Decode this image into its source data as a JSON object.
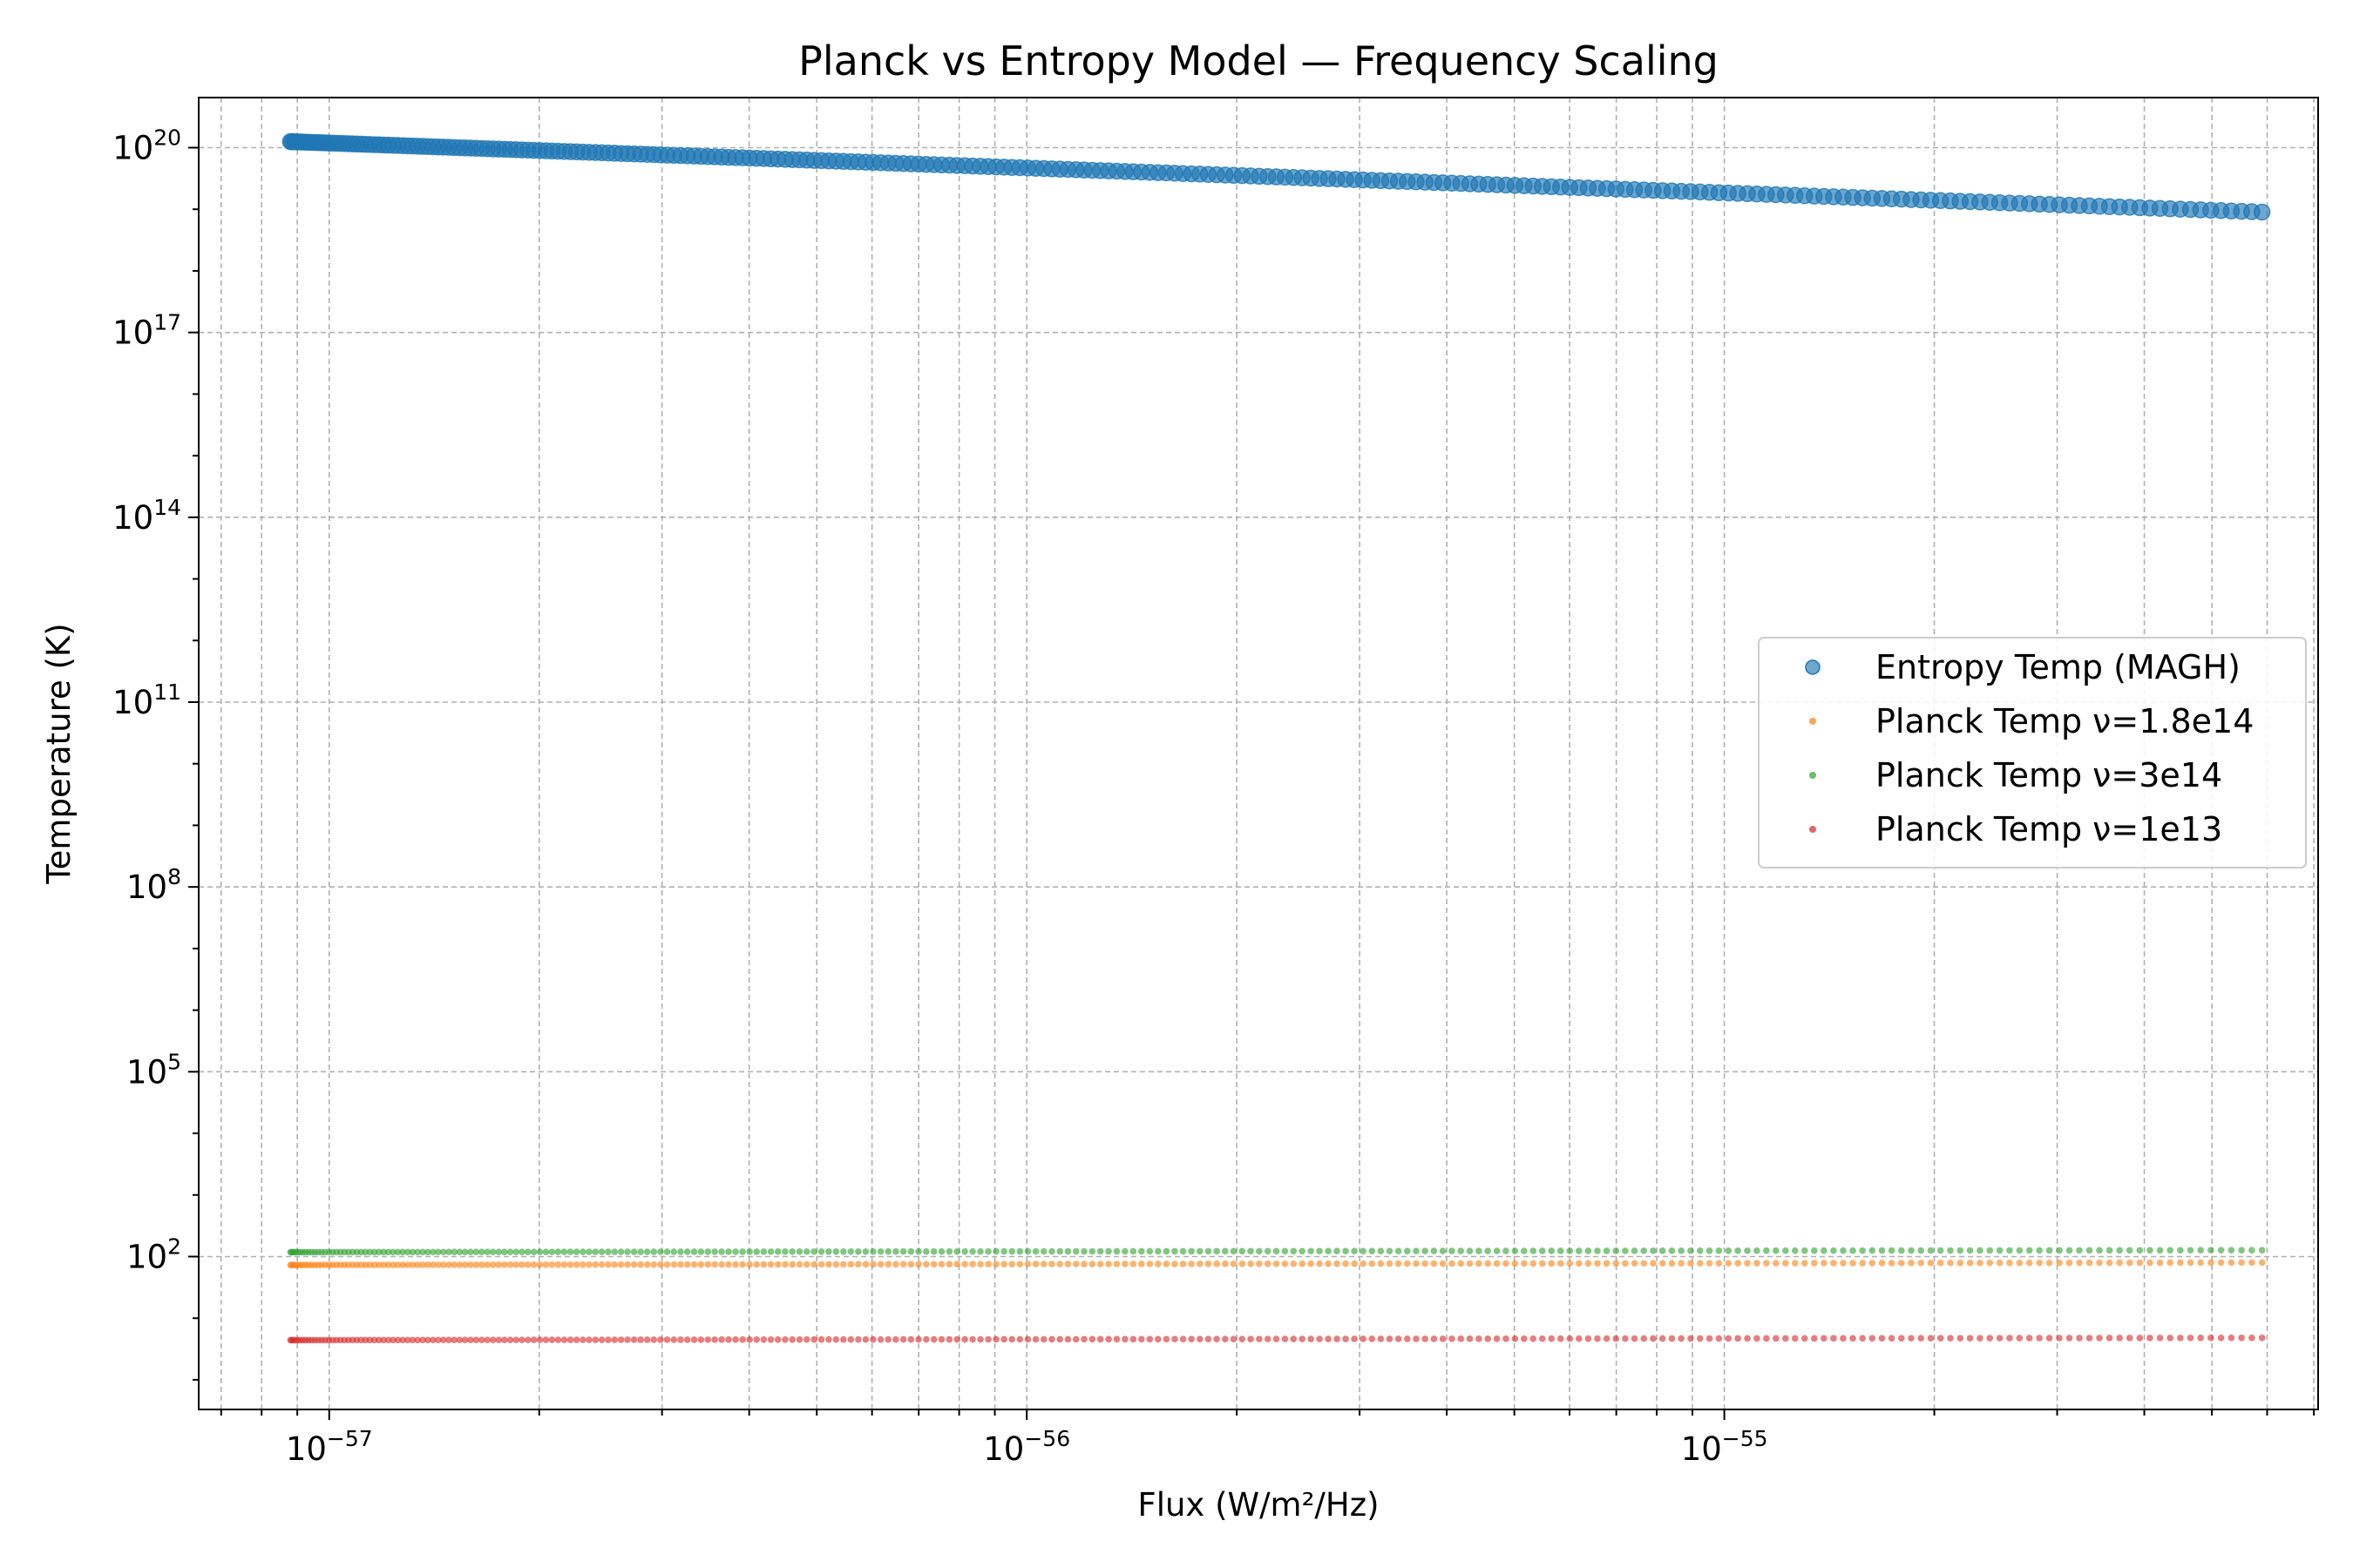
{
  "chart_data": {
    "type": "scatter",
    "title": "Planck vs Entropy Model — Frequency Scaling",
    "xlabel": "Flux (W/m²/Hz)",
    "ylabel": "Temperature (K)",
    "x_scale": "log",
    "y_scale": "log",
    "xlim": [
      6.5e-58,
      7.1e-55
    ],
    "ylim": [
      0.33,
      6.5e+20
    ],
    "grid": true,
    "legend_position": "center-right",
    "x_ticks": [
      {
        "base": "10",
        "exp": "−57",
        "value": 1e-57
      },
      {
        "base": "10",
        "exp": "−56",
        "value": 1e-56
      },
      {
        "base": "10",
        "exp": "−55",
        "value": 1e-55
      }
    ],
    "y_ticks": [
      {
        "base": "10",
        "exp": "2",
        "value": 100.0
      },
      {
        "base": "10",
        "exp": "5",
        "value": 100000.0
      },
      {
        "base": "10",
        "exp": "8",
        "value": 100000000.0
      },
      {
        "base": "10",
        "exp": "11",
        "value": 100000000000.0
      },
      {
        "base": "10",
        "exp": "14",
        "value": 100000000000000.0
      },
      {
        "base": "10",
        "exp": "17",
        "value": 1e+17
      },
      {
        "base": "10",
        "exp": "20",
        "value": 1e+20
      }
    ],
    "x_range": [
      8.8e-58,
      5.9e-55
    ],
    "series": [
      {
        "name": "Entropy Temp (MAGH)",
        "color": "#1f77b4",
        "marker": "large-circle",
        "y_start": 1.25e+20,
        "y_end": 9e+18
      },
      {
        "name": "Planck Temp ν=1.8e14",
        "color": "#ff7f0e",
        "marker": "small-dot",
        "y_start": 73,
        "y_end": 80
      },
      {
        "name": "Planck Temp ν=3e14",
        "color": "#2ca02c",
        "marker": "small-dot",
        "y_start": 118,
        "y_end": 127
      },
      {
        "name": "Planck Temp ν=1e13",
        "color": "#d62728",
        "marker": "small-dot",
        "y_start": 4.4,
        "y_end": 4.8
      }
    ]
  }
}
